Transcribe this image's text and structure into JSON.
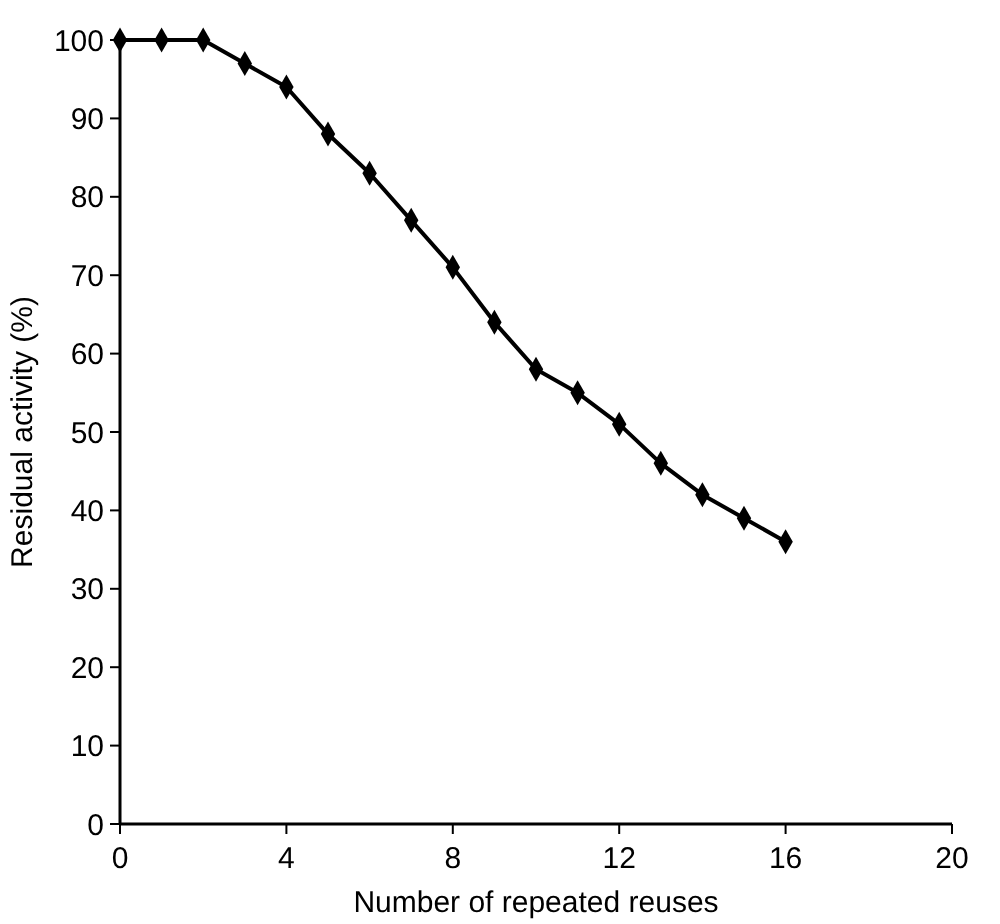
{
  "chart_data": {
    "type": "line",
    "xlabel": "Number of repeated reuses",
    "ylabel": "Residual activity (%)",
    "x": [
      0,
      1,
      2,
      3,
      4,
      5,
      6,
      7,
      8,
      9,
      10,
      11,
      12,
      13,
      14,
      15,
      16
    ],
    "series": [
      {
        "color": "#000000",
        "values": [
          100,
          100,
          100,
          97,
          94,
          88,
          83,
          77,
          71,
          64,
          58,
          55,
          51,
          46,
          42,
          39,
          36
        ]
      }
    ],
    "xlim": [
      0,
      20
    ],
    "xticks": [
      0,
      4,
      8,
      12,
      16,
      20
    ],
    "ylim": [
      0,
      100
    ],
    "yticks": [
      0,
      10,
      20,
      30,
      40,
      50,
      60,
      70,
      80,
      90,
      100
    ],
    "marker": "diamond",
    "line_style": "solid",
    "grid": false
  }
}
